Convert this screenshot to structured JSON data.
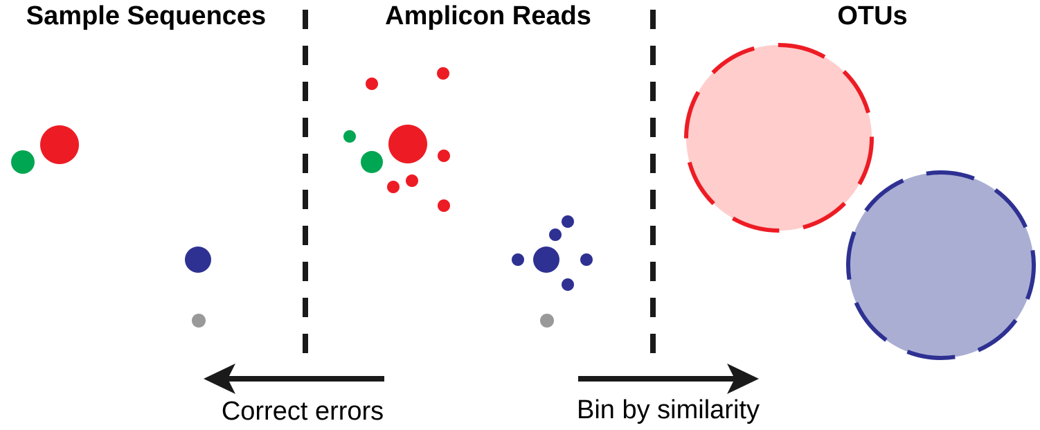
{
  "headings": {
    "sample_sequences": "Sample Sequences",
    "amplicon_reads": "Amplicon Reads",
    "otus": "OTUs"
  },
  "arrows": {
    "correct_errors": "Correct errors",
    "bin_by_similarity": "Bin by similarity"
  },
  "colors": {
    "red": "#ed1c24",
    "green": "#00a651",
    "blue": "#2e3192",
    "gray": "#999999",
    "otu_red_fill": "#fecdcc",
    "otu_blue_fill": "#aaaed3",
    "divider": "#1a1a1a",
    "arrow": "#1a1a1a"
  }
}
